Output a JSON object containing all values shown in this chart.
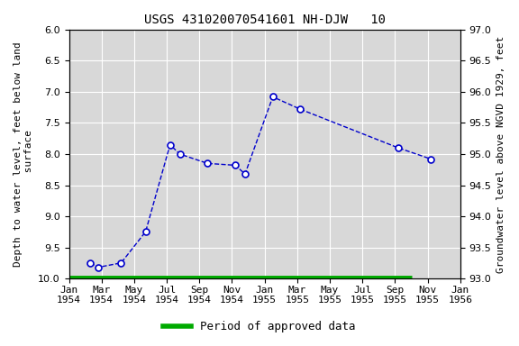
{
  "title": "USGS 431020070541601 NH-DJW   10",
  "ylabel_left": "Depth to water level, feet below land\n surface",
  "ylabel_right": "Groundwater level above NGVD 1929, feet",
  "ylim_left": [
    6.0,
    10.0
  ],
  "ylim_right_top": 97.0,
  "ylim_right_bottom": 93.0,
  "yticks_left": [
    6.0,
    6.5,
    7.0,
    7.5,
    8.0,
    8.5,
    9.0,
    9.5,
    10.0
  ],
  "yticks_right": [
    97.0,
    96.5,
    96.0,
    95.5,
    95.0,
    94.5,
    94.0,
    93.5,
    93.0
  ],
  "xtick_labels": [
    "Jan\n1954",
    "Mar\n1954",
    "May\n1954",
    "Jul\n1954",
    "Sep\n1954",
    "Nov\n1954",
    "Jan\n1955",
    "Mar\n1955",
    "May\n1955",
    "Jul\n1955",
    "Sep\n1955",
    "Nov\n1955",
    "Jan\n1956"
  ],
  "xtick_positions": [
    0,
    2,
    4,
    6,
    8,
    10,
    12,
    14,
    16,
    18,
    20,
    22,
    24
  ],
  "data_x": [
    1.3,
    1.8,
    3.2,
    4.7,
    6.2,
    6.8,
    8.5,
    10.2,
    10.8,
    12.5,
    14.2,
    20.2,
    22.2
  ],
  "data_y": [
    9.75,
    9.82,
    9.75,
    9.25,
    7.85,
    8.0,
    8.15,
    8.18,
    8.32,
    7.08,
    7.28,
    7.9,
    8.08
  ],
  "approved_bar_y": 10.0,
  "approved_bar_x_start": 0.05,
  "approved_bar_x_end": 21.0,
  "line_color": "#0000cc",
  "marker_color": "#0000cc",
  "marker_face": "#ffffff",
  "approved_color": "#00aa00",
  "background_color": "#ffffff",
  "plot_bg_color": "#d8d8d8",
  "grid_color": "#ffffff",
  "title_fontsize": 10,
  "label_fontsize": 8,
  "tick_fontsize": 8,
  "legend_fontsize": 9
}
